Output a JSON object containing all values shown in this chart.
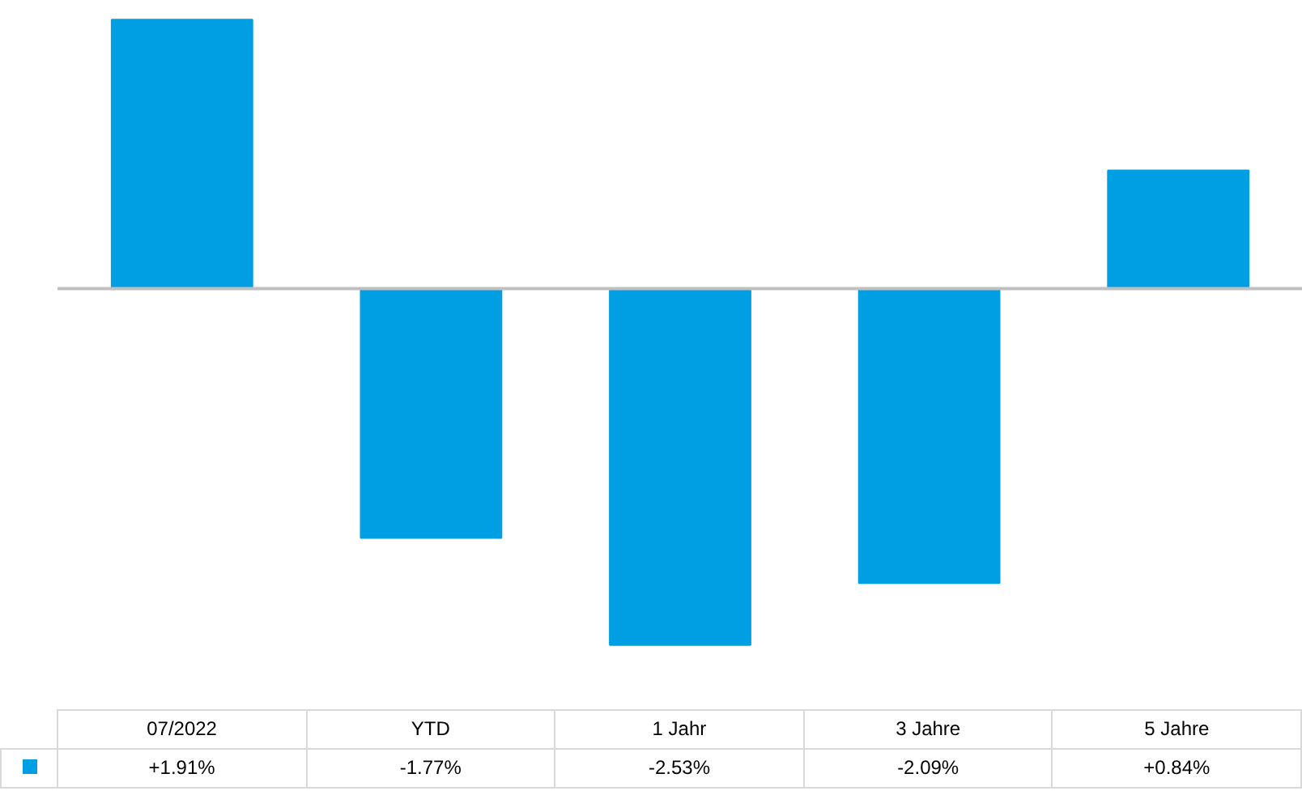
{
  "chart_data": {
    "type": "bar",
    "categories": [
      "07/2022",
      "YTD",
      "1 Jahr",
      "3 Jahre",
      "5 Jahre"
    ],
    "values": [
      1.91,
      -1.77,
      -2.53,
      -2.09,
      0.84
    ],
    "value_labels": [
      "+1.91%",
      "-1.77%",
      "-2.53%",
      "-2.09%",
      "+0.84%"
    ],
    "color": "#009fe3"
  }
}
